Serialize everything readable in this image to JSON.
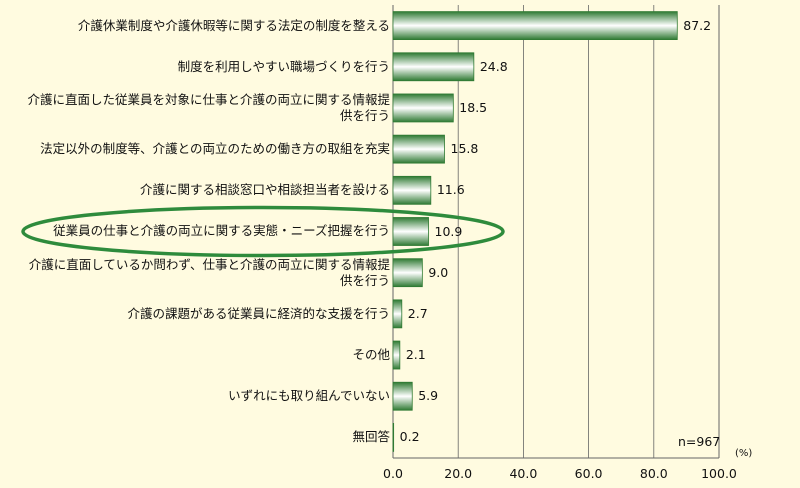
{
  "chart_data": {
    "type": "bar",
    "orientation": "horizontal",
    "categories": [
      "介護休業制度や介護休暇等に関する法定の制度を整える",
      "制度を利用しやすい職場づくりを行う",
      "介護に直面した従業員を対象に仕事と介護の両立に関する情報提供を行う",
      "法定以外の制度等、介護との両立のための働き方の取組を充実",
      "介護に関する相談窓口や相談担当者を設ける",
      "従業員の仕事と介護の両立に関する実態・ニーズ把握を行う",
      "介護に直面しているか問わず、仕事と介護の両立に関する情報提供を行う",
      "介護の課題がある従業員に経済的な支援を行う",
      "その他",
      "いずれにも取り組んでいない",
      "無回答"
    ],
    "values": [
      87.2,
      24.8,
      18.5,
      15.8,
      11.6,
      10.9,
      9.0,
      2.7,
      2.1,
      5.9,
      0.2
    ],
    "value_labels": [
      "87.2",
      "24.8",
      "18.5",
      "15.8",
      "11.6",
      "10.9",
      "9.0",
      "2.7",
      "2.1",
      "5.9",
      "0.2"
    ],
    "xlim": [
      0,
      100
    ],
    "ticks": [
      "0.0",
      "20.0",
      "40.0",
      "60.0",
      "80.0",
      "100.0"
    ],
    "unit": "(%)",
    "sample_note": "n=967",
    "highlighted_index": 5,
    "grid": true,
    "colors": {
      "background": "#fffbe0",
      "bar_dark": "#2f7a33",
      "bar_light": "#ffffff",
      "highlight": "#2e8b3c",
      "grid": "#666666"
    }
  }
}
